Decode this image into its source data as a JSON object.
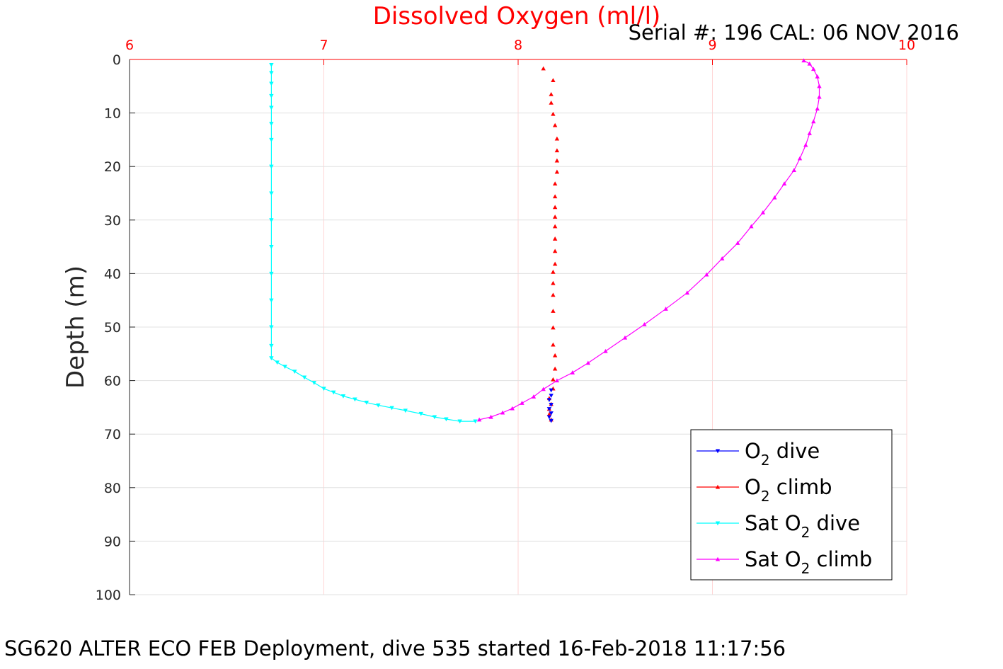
{
  "title": "Dissolved Oxygen (ml/l)",
  "serial_text": "Serial #: 196  CAL: 06 NOV 2016",
  "caption": "SG620 ALTER ECO FEB Deployment, dive 535 started 16-Feb-2018 11:17:56",
  "ylabel": "Depth (m)",
  "colors": {
    "title": "#ff0000",
    "x_axis": "#ff0000",
    "y_axis": "#262626",
    "grid_x": "#ffd6d6",
    "grid_y": "#e0e0e0",
    "o2_dive": "#0000ff",
    "o2_climb": "#ff0000",
    "sat_dive": "#00ffff",
    "sat_climb": "#ff00ff"
  },
  "legend": {
    "items": [
      {
        "pre": "O",
        "sub": "2",
        "post": " dive",
        "marker": "down",
        "color": "#0000ff"
      },
      {
        "pre": "O",
        "sub": "2",
        "post": " climb",
        "marker": "up",
        "color": "#ff0000"
      },
      {
        "pre": "Sat O",
        "sub": "2",
        "post": " dive",
        "marker": "down",
        "color": "#00ffff"
      },
      {
        "pre": "Sat O",
        "sub": "2",
        "post": " climb",
        "marker": "up",
        "color": "#ff00ff"
      }
    ]
  },
  "chart_data": {
    "type": "line",
    "x_axis_position": "top",
    "y_direction": "reversed",
    "xlim": [
      6,
      10
    ],
    "ylim": [
      0,
      100
    ],
    "xticks": [
      "6",
      "7",
      "8",
      "9",
      "10"
    ],
    "yticks": [
      "0",
      "10",
      "20",
      "30",
      "40",
      "50",
      "60",
      "70",
      "80",
      "90",
      "100"
    ],
    "grid": true,
    "legend_position": "bottom-right",
    "series": [
      {
        "name": "O2 dive",
        "marker": "down",
        "line": false,
        "points": [
          [
            8.17,
            61.8
          ],
          [
            8.17,
            62.8
          ],
          [
            8.16,
            63.6
          ],
          [
            8.17,
            64.5
          ],
          [
            8.16,
            65.3
          ],
          [
            8.17,
            66.1
          ],
          [
            8.16,
            66.8
          ],
          [
            8.17,
            67.5
          ]
        ]
      },
      {
        "name": "O2 climb",
        "marker": "up",
        "line": false,
        "points": [
          [
            8.17,
            67.3
          ],
          [
            8.16,
            66.3
          ],
          [
            8.16,
            65.3
          ],
          [
            8.17,
            64.4
          ],
          [
            8.16,
            63.3
          ],
          [
            8.18,
            61.5
          ],
          [
            8.18,
            59.8
          ],
          [
            8.19,
            57.8
          ],
          [
            8.19,
            55.3
          ],
          [
            8.18,
            53.3
          ],
          [
            8.18,
            50.1
          ],
          [
            8.18,
            47.0
          ],
          [
            8.18,
            44.0
          ],
          [
            8.18,
            41.8
          ],
          [
            8.18,
            39.7
          ],
          [
            8.19,
            38.2
          ],
          [
            8.19,
            35.8
          ],
          [
            8.19,
            33.5
          ],
          [
            8.19,
            31.2
          ],
          [
            8.19,
            29.4
          ],
          [
            8.19,
            27.6
          ],
          [
            8.19,
            25.6
          ],
          [
            8.19,
            23.2
          ],
          [
            8.2,
            21.0
          ],
          [
            8.2,
            18.9
          ],
          [
            8.2,
            17.0
          ],
          [
            8.2,
            14.8
          ],
          [
            8.19,
            12.3
          ],
          [
            8.18,
            10.2
          ],
          [
            8.17,
            8.1
          ],
          [
            8.17,
            6.5
          ],
          [
            8.18,
            3.9
          ],
          [
            8.13,
            1.7
          ]
        ]
      },
      {
        "name": "Sat O2 dive",
        "marker": "down",
        "line": true,
        "points": [
          [
            6.73,
            1.0
          ],
          [
            6.73,
            2.5
          ],
          [
            6.73,
            4.5
          ],
          [
            6.73,
            6.8
          ],
          [
            6.73,
            9.0
          ],
          [
            6.73,
            12.0
          ],
          [
            6.73,
            15.0
          ],
          [
            6.73,
            20.0
          ],
          [
            6.73,
            25.0
          ],
          [
            6.73,
            30.0
          ],
          [
            6.73,
            35.0
          ],
          [
            6.73,
            40.0
          ],
          [
            6.73,
            45.0
          ],
          [
            6.73,
            50.0
          ],
          [
            6.73,
            53.5
          ],
          [
            6.73,
            55.8
          ],
          [
            6.76,
            56.6
          ],
          [
            6.8,
            57.4
          ],
          [
            6.85,
            58.3
          ],
          [
            6.9,
            59.4
          ],
          [
            6.95,
            60.4
          ],
          [
            7.0,
            61.5
          ],
          [
            7.05,
            62.2
          ],
          [
            7.1,
            62.9
          ],
          [
            7.16,
            63.5
          ],
          [
            7.22,
            64.1
          ],
          [
            7.28,
            64.6
          ],
          [
            7.35,
            65.1
          ],
          [
            7.42,
            65.6
          ],
          [
            7.5,
            66.2
          ],
          [
            7.57,
            66.8
          ],
          [
            7.63,
            67.2
          ],
          [
            7.7,
            67.6
          ],
          [
            7.78,
            67.6
          ]
        ]
      },
      {
        "name": "Sat O2 climb",
        "marker": "up",
        "line": true,
        "points": [
          [
            7.8,
            67.3
          ],
          [
            7.86,
            66.8
          ],
          [
            7.92,
            66.0
          ],
          [
            7.97,
            65.2
          ],
          [
            8.02,
            64.2
          ],
          [
            8.08,
            63.0
          ],
          [
            8.13,
            61.6
          ],
          [
            8.2,
            60.0
          ],
          [
            8.28,
            58.5
          ],
          [
            8.36,
            56.7
          ],
          [
            8.45,
            54.5
          ],
          [
            8.55,
            52.0
          ],
          [
            8.65,
            49.5
          ],
          [
            8.76,
            46.6
          ],
          [
            8.87,
            43.6
          ],
          [
            8.97,
            40.2
          ],
          [
            9.05,
            37.2
          ],
          [
            9.13,
            34.3
          ],
          [
            9.2,
            31.2
          ],
          [
            9.26,
            28.6
          ],
          [
            9.32,
            25.8
          ],
          [
            9.37,
            23.2
          ],
          [
            9.42,
            20.7
          ],
          [
            9.45,
            18.5
          ],
          [
            9.48,
            16.0
          ],
          [
            9.5,
            13.8
          ],
          [
            9.52,
            11.6
          ],
          [
            9.54,
            9.2
          ],
          [
            9.55,
            7.0
          ],
          [
            9.55,
            5.0
          ],
          [
            9.54,
            3.2
          ],
          [
            9.52,
            1.8
          ],
          [
            9.5,
            0.8
          ],
          [
            9.47,
            0.2
          ]
        ]
      }
    ]
  }
}
